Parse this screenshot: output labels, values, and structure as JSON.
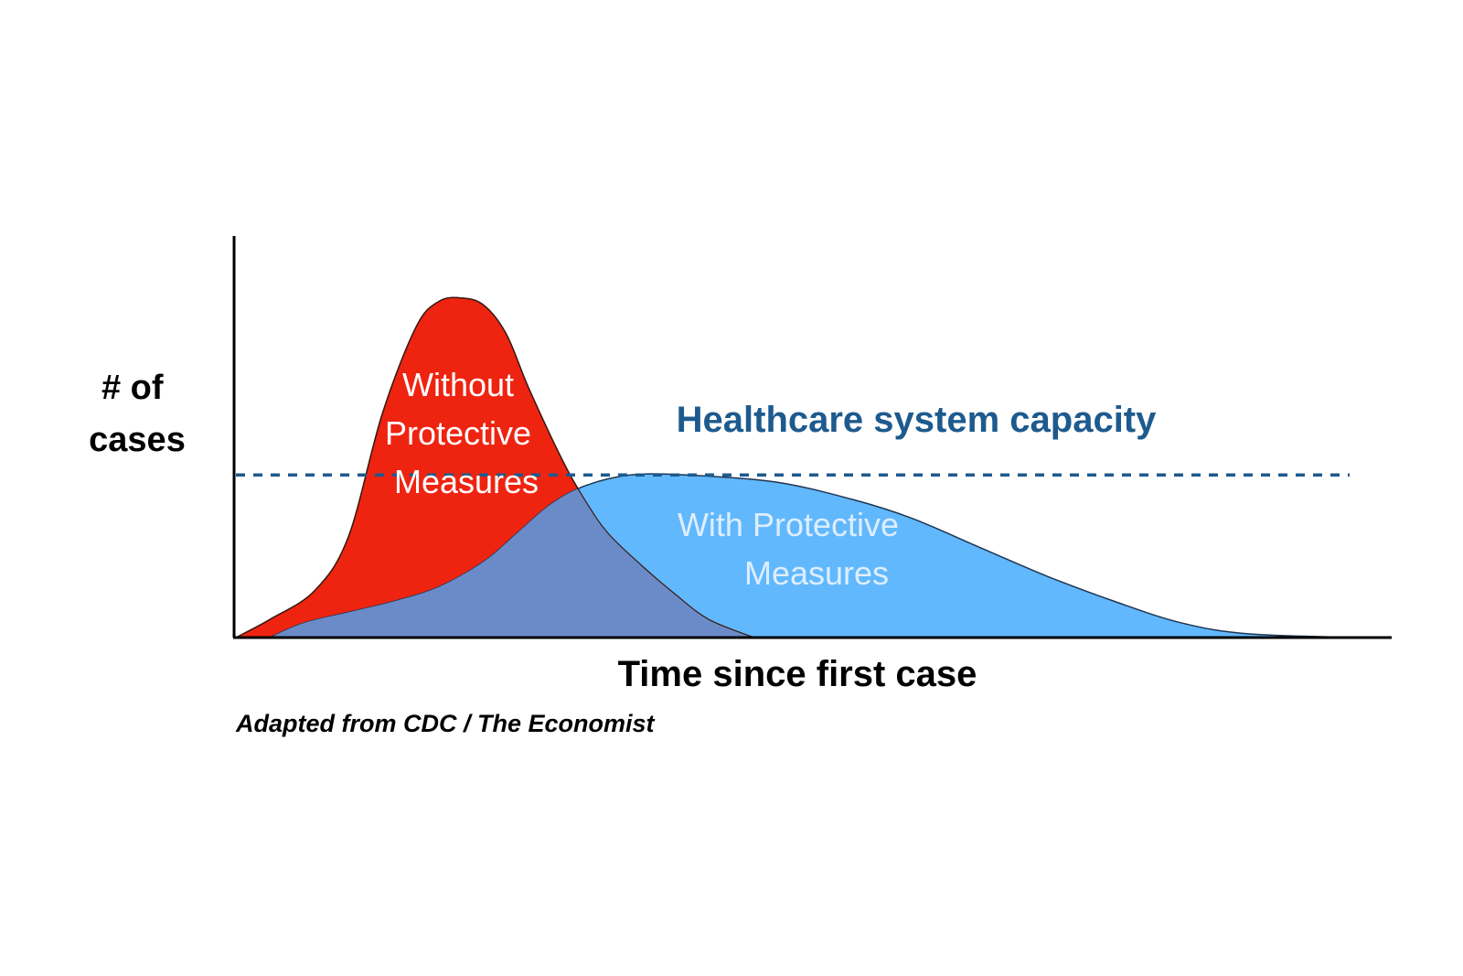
{
  "chart_data": {
    "type": "area",
    "title": "",
    "xlabel": "Time since first case",
    "ylabel_lines": [
      "# of",
      "cases"
    ],
    "xlim": [
      0,
      100
    ],
    "ylim": [
      0,
      100
    ],
    "ticks": "none",
    "grid": false,
    "legend": "none",
    "capacity_line": {
      "label": "Healthcare system capacity",
      "value": 45,
      "style": "dashed",
      "color": "#1d5a8e"
    },
    "series": [
      {
        "label_lines": [
          "Without",
          "Protective",
          "Measures"
        ],
        "color": "#ee2411",
        "points": [
          [
            0,
            0
          ],
          [
            3,
            5
          ],
          [
            7,
            13
          ],
          [
            10,
            28
          ],
          [
            13,
            62
          ],
          [
            16,
            86
          ],
          [
            18,
            93
          ],
          [
            20,
            94
          ],
          [
            22,
            92
          ],
          [
            24,
            84
          ],
          [
            26,
            69
          ],
          [
            29,
            49
          ],
          [
            31,
            38
          ],
          [
            33,
            29
          ],
          [
            36,
            20
          ],
          [
            39,
            12
          ],
          [
            42,
            5
          ],
          [
            46,
            0
          ]
        ]
      },
      {
        "label_lines": [
          "With Protective",
          "Measures"
        ],
        "color": "#62b8fd",
        "points": [
          [
            3,
            0
          ],
          [
            6,
            4
          ],
          [
            10,
            7
          ],
          [
            14,
            10
          ],
          [
            18,
            14
          ],
          [
            22,
            21
          ],
          [
            25,
            29
          ],
          [
            28,
            37
          ],
          [
            31,
            42
          ],
          [
            35,
            45
          ],
          [
            40,
            45
          ],
          [
            48,
            43
          ],
          [
            55,
            38
          ],
          [
            60,
            33
          ],
          [
            66,
            25
          ],
          [
            72,
            17
          ],
          [
            78,
            10
          ],
          [
            84,
            4
          ],
          [
            90,
            1
          ],
          [
            100,
            0
          ]
        ]
      }
    ],
    "overlap_color": "#6a8bc8"
  },
  "source_note": "Adapted from CDC / The Economist"
}
